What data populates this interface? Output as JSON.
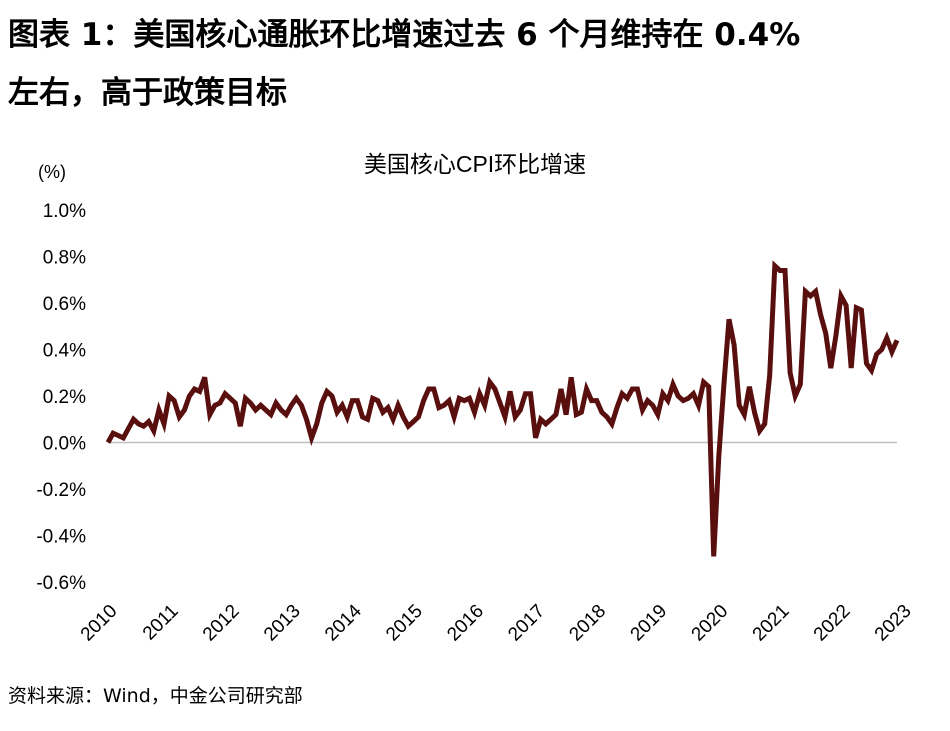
{
  "figure": {
    "title_line1": "图表 1：美国核心通胀环比增速过去 6 个月维持在 0.4%",
    "title_line2": "左右，高于政策目标",
    "source": "资料来源：Wind，中金公司研究部"
  },
  "colors": {
    "line": "#5a0f0f",
    "axis": "#bfbfbf"
  },
  "chart_data": {
    "type": "line",
    "title": "美国核心CPI环比增速",
    "unit_label": "(%)",
    "ylim": [
      -0.6,
      1.0
    ],
    "y_ticks": [
      "1.0%",
      "0.8%",
      "0.6%",
      "0.4%",
      "0.2%",
      "0.0%",
      "-0.2%",
      "-0.4%",
      "-0.6%"
    ],
    "y_tick_values": [
      1.0,
      0.8,
      0.6,
      0.4,
      0.2,
      0.0,
      -0.2,
      -0.4,
      -0.6
    ],
    "x_ticks": [
      "2010",
      "2011",
      "2012",
      "2013",
      "2014",
      "2015",
      "2016",
      "2017",
      "2018",
      "2019",
      "2020",
      "2021",
      "2022",
      "2023"
    ],
    "x_start": "2010-01",
    "x_end": "2023-06",
    "grid": false,
    "legend": "none",
    "series": [
      {
        "values": [
          0.0,
          0.04,
          0.03,
          0.02,
          0.06,
          0.1,
          0.08,
          0.07,
          0.09,
          0.05,
          0.14,
          0.08,
          0.2,
          0.18,
          0.11,
          0.14,
          0.2,
          0.23,
          0.22,
          0.28,
          0.12,
          0.16,
          0.17,
          0.21,
          0.19,
          0.17,
          0.07,
          0.19,
          0.17,
          0.14,
          0.16,
          0.14,
          0.12,
          0.17,
          0.14,
          0.12,
          0.16,
          0.19,
          0.16,
          0.1,
          0.02,
          0.08,
          0.17,
          0.22,
          0.2,
          0.13,
          0.16,
          0.11,
          0.18,
          0.18,
          0.11,
          0.1,
          0.19,
          0.18,
          0.13,
          0.15,
          0.1,
          0.16,
          0.11,
          0.07,
          0.09,
          0.11,
          0.18,
          0.23,
          0.23,
          0.15,
          0.16,
          0.18,
          0.11,
          0.19,
          0.18,
          0.19,
          0.13,
          0.21,
          0.16,
          0.26,
          0.23,
          0.17,
          0.11,
          0.22,
          0.11,
          0.14,
          0.21,
          0.21,
          0.02,
          0.1,
          0.08,
          0.1,
          0.12,
          0.23,
          0.12,
          0.28,
          0.12,
          0.13,
          0.23,
          0.18,
          0.18,
          0.13,
          0.11,
          0.08,
          0.15,
          0.21,
          0.19,
          0.23,
          0.23,
          0.14,
          0.18,
          0.16,
          0.12,
          0.21,
          0.18,
          0.25,
          0.2,
          0.18,
          0.19,
          0.21,
          0.16,
          0.26,
          0.24,
          -0.49,
          -0.06,
          0.25,
          0.53,
          0.42,
          0.16,
          0.12,
          0.24,
          0.13,
          0.05,
          0.08,
          0.29,
          0.76,
          0.74,
          0.74,
          0.3,
          0.2,
          0.25,
          0.65,
          0.63,
          0.65,
          0.55,
          0.47,
          0.32,
          0.46,
          0.63,
          0.59,
          0.32,
          0.58,
          0.57,
          0.34,
          0.31,
          0.38,
          0.4,
          0.45,
          0.39,
          0.44
        ]
      }
    ]
  }
}
